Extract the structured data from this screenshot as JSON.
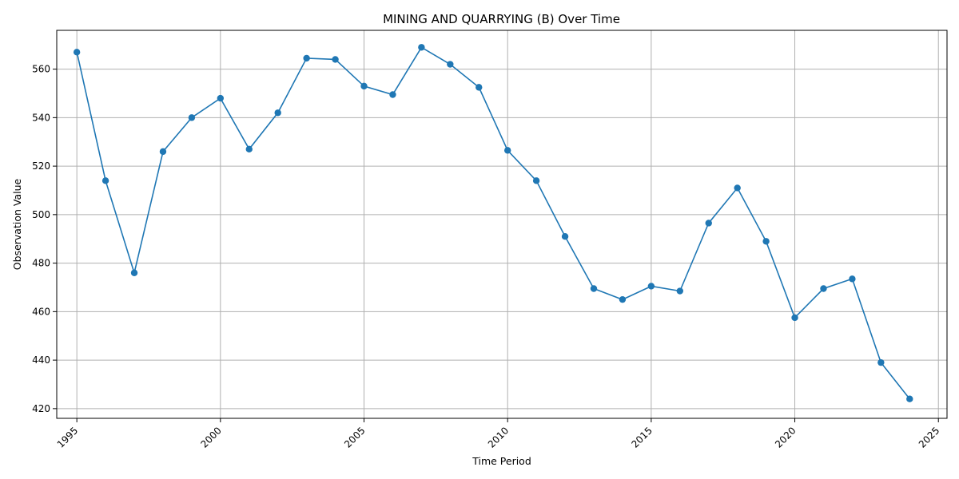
{
  "chart_data": {
    "type": "line",
    "title": "MINING AND QUARRYING (B) Over Time",
    "xlabel": "Time Period",
    "ylabel": "Observation Value",
    "xlim": [
      1994.3,
      2025.3
    ],
    "ylim": [
      416,
      576
    ],
    "xticks": [
      1995,
      2000,
      2005,
      2010,
      2015,
      2020,
      2025
    ],
    "yticks": [
      420,
      440,
      460,
      480,
      500,
      520,
      540,
      560
    ],
    "grid": true,
    "color": "#1f77b4",
    "marker": "circle",
    "series": [
      {
        "x": [
          1995,
          1996,
          1997,
          1998,
          1999,
          2000,
          2001,
          2002,
          2003,
          2004,
          2005,
          2006,
          2007,
          2008,
          2009,
          2010,
          2011,
          2012,
          2013,
          2014,
          2015,
          2016,
          2017,
          2018,
          2019,
          2020,
          2021,
          2022,
          2023,
          2024
        ],
        "values": [
          567,
          514,
          476,
          526,
          540,
          548,
          527,
          542,
          564.5,
          564,
          553,
          549.5,
          569,
          562,
          552.5,
          526.5,
          514,
          491,
          469.5,
          465,
          470.5,
          468.5,
          496.5,
          511,
          489,
          457.5,
          469.5,
          473.5,
          439,
          424
        ]
      }
    ]
  }
}
